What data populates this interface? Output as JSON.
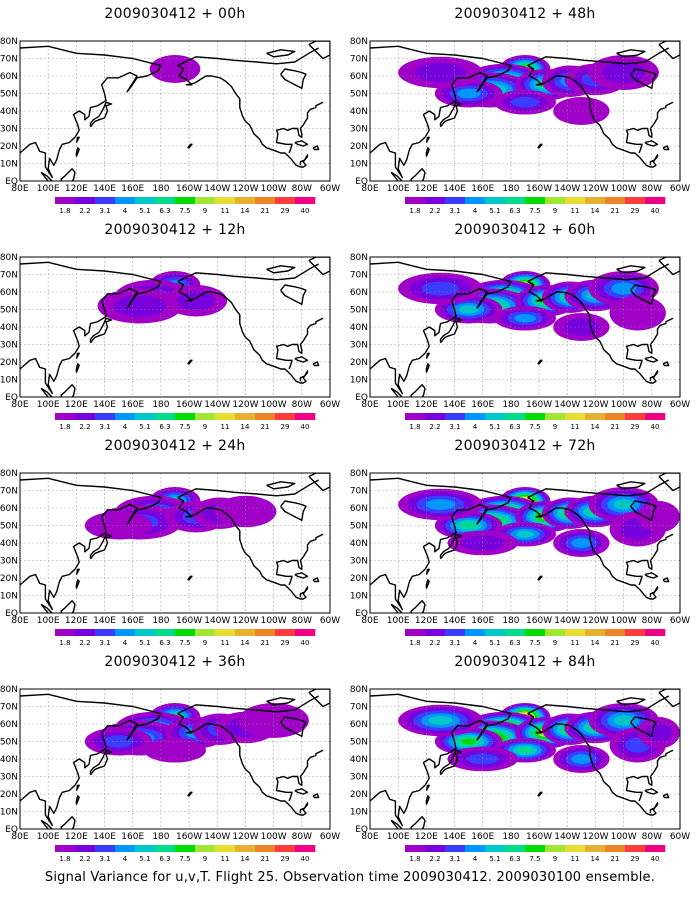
{
  "footer": "Signal Variance for u,v,T. Flight 25. Observation time 2009030412. 2009030100 ensemble.",
  "lat_labels": [
    "80N",
    "70N",
    "60N",
    "50N",
    "40N",
    "30N",
    "20N",
    "10N",
    "EQ"
  ],
  "lon_labels": [
    "80E",
    "100E",
    "120E",
    "140E",
    "160E",
    "180",
    "160W",
    "140W",
    "120W",
    "100W",
    "80W",
    "60W"
  ],
  "legend": {
    "values": [
      "1.8",
      "2.2",
      "3.1",
      "4",
      "5.1",
      "6.3",
      "7.5",
      "9",
      "11",
      "14",
      "21",
      "29",
      "40"
    ],
    "colors": [
      "#a000c8",
      "#7800dc",
      "#3c3cff",
      "#0096ff",
      "#00c8c8",
      "#00dc8c",
      "#00dc00",
      "#a0e632",
      "#e6dc32",
      "#e6af2d",
      "#f08228",
      "#fa3c3c",
      "#f00082"
    ]
  },
  "panels": [
    {
      "id": "p00",
      "title": "2009030412 + 00h",
      "intensity": 0.05
    },
    {
      "id": "p48",
      "title": "2009030412 + 48h",
      "intensity": 0.62
    },
    {
      "id": "p12",
      "title": "2009030412 + 12h",
      "intensity": 0.28
    },
    {
      "id": "p60",
      "title": "2009030412 + 60h",
      "intensity": 0.74
    },
    {
      "id": "p24",
      "title": "2009030412 + 24h",
      "intensity": 0.4
    },
    {
      "id": "p72",
      "title": "2009030412 + 72h",
      "intensity": 0.84
    },
    {
      "id": "p36",
      "title": "2009030412 + 36h",
      "intensity": 0.5
    },
    {
      "id": "p84",
      "title": "2009030412 + 84h",
      "intensity": 0.9
    }
  ]
}
